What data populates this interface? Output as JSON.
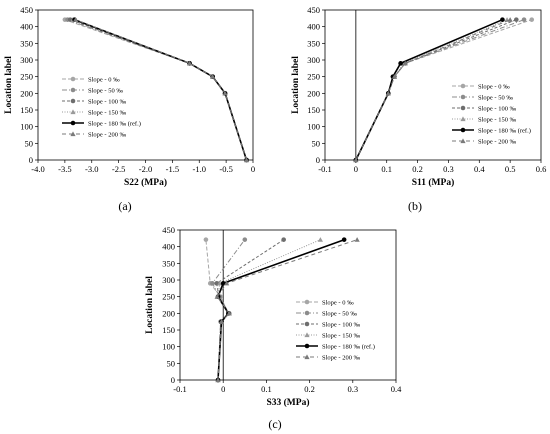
{
  "panel_labels": [
    "(a)",
    "(b)",
    "(c)"
  ],
  "legend_labels": [
    "Slope - 0 ‰",
    "Slope - 50 ‰",
    "Slope - 100 ‰",
    "Slope - 150 ‰",
    "Slope - 180 ‰ (ref.)",
    "Slope - 200 ‰"
  ],
  "series_styles": [
    {
      "color": "#a6a6a6",
      "dash": "4 2",
      "marker": "circle",
      "width": 1
    },
    {
      "color": "#8c8c8c",
      "dash": "5 2 1 2",
      "marker": "circle",
      "width": 1
    },
    {
      "color": "#6e6e6e",
      "dash": "3 2",
      "marker": "circle",
      "width": 1
    },
    {
      "color": "#9a9a9a",
      "dash": "1 1.5",
      "marker": "triangle",
      "width": 1
    },
    {
      "color": "#000000",
      "dash": "",
      "marker": "circle",
      "width": 1.6
    },
    {
      "color": "#7a7a7a",
      "dash": "4 3",
      "marker": "triangle",
      "width": 1
    }
  ],
  "chart_data": [
    {
      "type": "line",
      "panel": "(a)",
      "xlabel": "S22 (MPa)",
      "ylabel": "Location label",
      "xlim": [
        -4.0,
        0
      ],
      "ylim": [
        0,
        450
      ],
      "xticks": [
        "-4.0",
        "-3.5",
        "-3.0",
        "-2.5",
        "-2.0",
        "-1.5",
        "-1.0",
        "-0.5",
        "0"
      ],
      "yticks": [
        "0",
        "50",
        "100",
        "150",
        "200",
        "250",
        "300",
        "350",
        "400",
        "450"
      ],
      "series": [
        {
          "name": "Slope - 0 ‰",
          "x": [
            -0.12,
            -0.52,
            -0.75,
            -1.18,
            -3.5
          ],
          "y": [
            0,
            200,
            250,
            290,
            421
          ]
        },
        {
          "name": "Slope - 50 ‰",
          "x": [
            -0.12,
            -0.52,
            -0.75,
            -1.18,
            -3.45
          ],
          "y": [
            0,
            200,
            250,
            290,
            421
          ]
        },
        {
          "name": "Slope - 100 ‰",
          "x": [
            -0.12,
            -0.52,
            -0.75,
            -1.18,
            -3.4
          ],
          "y": [
            0,
            200,
            250,
            290,
            421
          ]
        },
        {
          "name": "Slope - 150 ‰",
          "x": [
            -0.12,
            -0.52,
            -0.75,
            -1.18,
            -3.35
          ],
          "y": [
            0,
            200,
            250,
            290,
            421
          ]
        },
        {
          "name": "Slope - 180 ‰ (ref.)",
          "x": [
            -0.12,
            -0.52,
            -0.75,
            -1.18,
            -3.32
          ],
          "y": [
            0,
            200,
            250,
            290,
            421
          ]
        },
        {
          "name": "Slope - 200 ‰",
          "x": [
            -0.12,
            -0.52,
            -0.75,
            -1.18,
            -3.3
          ],
          "y": [
            0,
            200,
            250,
            290,
            421
          ]
        }
      ]
    },
    {
      "type": "line",
      "panel": "(b)",
      "xlabel": "S11 (MPa)",
      "ylabel": "Location label",
      "xlim": [
        -0.1,
        0.6
      ],
      "ylim": [
        0,
        450
      ],
      "xticks": [
        "-0.1",
        "0",
        "0.1",
        "0.2",
        "0.3",
        "0.4",
        "0.5",
        "0.6"
      ],
      "yticks": [
        "0",
        "50",
        "100",
        "150",
        "200",
        "250",
        "300",
        "350",
        "400",
        "450"
      ],
      "series": [
        {
          "name": "Slope - 0 ‰",
          "x": [
            0,
            0.105,
            0.125,
            0.16,
            0.57
          ],
          "y": [
            0,
            200,
            250,
            290,
            421
          ]
        },
        {
          "name": "Slope - 50 ‰",
          "x": [
            0,
            0.105,
            0.125,
            0.16,
            0.545
          ],
          "y": [
            0,
            200,
            250,
            290,
            421
          ]
        },
        {
          "name": "Slope - 100 ‰",
          "x": [
            0,
            0.105,
            0.125,
            0.16,
            0.52
          ],
          "y": [
            0,
            200,
            250,
            290,
            421
          ]
        },
        {
          "name": "Slope - 150 ‰",
          "x": [
            0,
            0.105,
            0.125,
            0.155,
            0.49
          ],
          "y": [
            0,
            200,
            250,
            290,
            421
          ]
        },
        {
          "name": "Slope - 180 ‰ (ref.)",
          "x": [
            0,
            0.105,
            0.12,
            0.145,
            0.475
          ],
          "y": [
            0,
            200,
            250,
            290,
            421
          ]
        },
        {
          "name": "Slope - 200 ‰",
          "x": [
            0,
            0.105,
            0.125,
            0.16,
            0.5
          ],
          "y": [
            0,
            200,
            250,
            290,
            421
          ]
        }
      ]
    },
    {
      "type": "line",
      "panel": "(c)",
      "xlabel": "S33 (MPa)",
      "ylabel": "Location label",
      "xlim": [
        -0.1,
        0.4
      ],
      "ylim": [
        0,
        450
      ],
      "xticks": [
        "-0.1",
        "0",
        "0.1",
        "0.2",
        "0.3",
        "0.4"
      ],
      "yticks": [
        "0",
        "50",
        "100",
        "150",
        "200",
        "250",
        "300",
        "350",
        "400",
        "450"
      ],
      "series": [
        {
          "name": "Slope - 0 ‰",
          "x": [
            -0.012,
            -0.006,
            0.012,
            -0.006,
            -0.03,
            -0.04
          ],
          "y": [
            0,
            175,
            200,
            250,
            290,
            421
          ]
        },
        {
          "name": "Slope - 50 ‰",
          "x": [
            -0.012,
            -0.006,
            0.012,
            -0.008,
            -0.025,
            0.05
          ],
          "y": [
            0,
            175,
            200,
            250,
            290,
            421
          ]
        },
        {
          "name": "Slope - 100 ‰",
          "x": [
            -0.012,
            -0.004,
            0.014,
            -0.01,
            -0.015,
            0.14
          ],
          "y": [
            0,
            175,
            200,
            250,
            290,
            421
          ]
        },
        {
          "name": "Slope - 150 ‰",
          "x": [
            -0.012,
            -0.004,
            0.014,
            -0.012,
            -0.008,
            0.225
          ],
          "y": [
            0,
            175,
            200,
            250,
            290,
            421
          ]
        },
        {
          "name": "Slope - 180 ‰ (ref.)",
          "x": [
            -0.012,
            -0.004,
            0.012,
            -0.012,
            0.0,
            0.28
          ],
          "y": [
            0,
            175,
            200,
            250,
            290,
            421
          ]
        },
        {
          "name": "Slope - 200 ‰",
          "x": [
            -0.012,
            -0.004,
            0.014,
            -0.014,
            0.008,
            0.31
          ],
          "y": [
            0,
            175,
            200,
            250,
            290,
            421
          ]
        }
      ]
    }
  ]
}
